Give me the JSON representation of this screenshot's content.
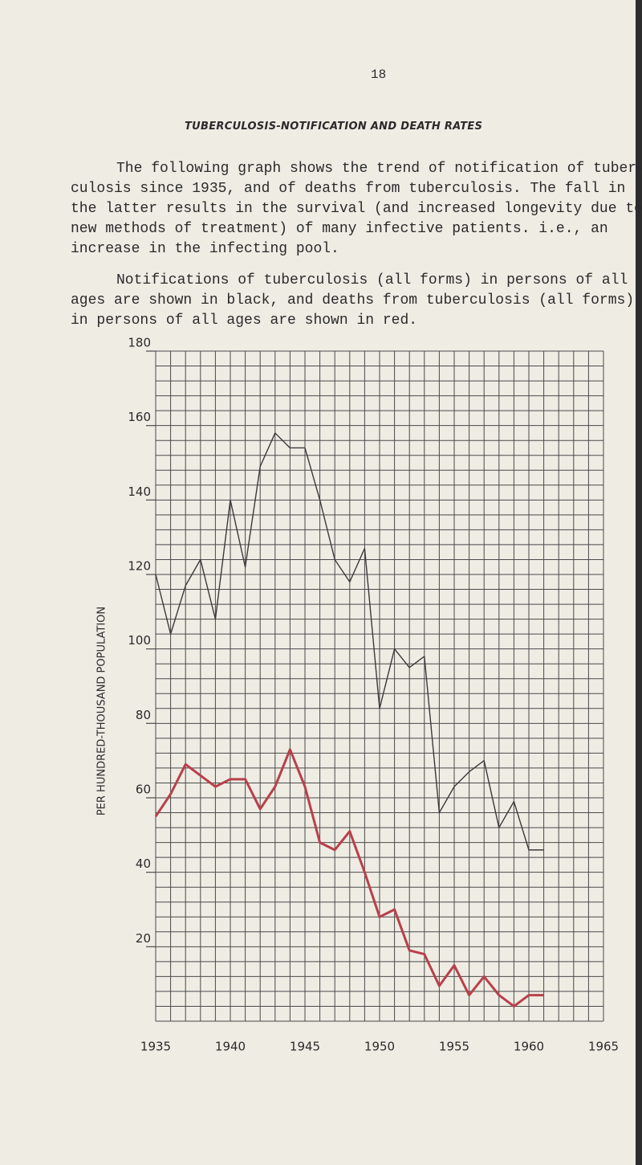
{
  "page_number": "18",
  "heading": "TUBERCULOSIS-NOTIFICATION AND DEATH RATES",
  "paragraphs": [
    [
      "The following graph shows the trend of notification of tuber-",
      "culosis since 1935, and of deaths from tuberculosis. The fall in",
      "the latter results in the survival (and increased longevity due to",
      "new methods of treatment) of many infective patients. i.e., an",
      "increase in the infecting pool."
    ],
    [
      "Notifications of tuberculosis (all forms) in persons of all",
      "ages are shown in black, and deaths from tuberculosis (all forms)",
      "in persons of all ages are shown in red."
    ]
  ],
  "chart_data": {
    "type": "line",
    "y_label": "PER HUNDRED-THOUSAND POPULATION",
    "x": [
      1935,
      1936,
      1937,
      1938,
      1939,
      1940,
      1941,
      1942,
      1943,
      1944,
      1945,
      1946,
      1947,
      1948,
      1949,
      1950,
      1951,
      1952,
      1953,
      1954,
      1955,
      1956,
      1957,
      1958,
      1959,
      1960,
      1961
    ],
    "series": [
      {
        "color": "#3a3a3a",
        "values": [
          120,
          104,
          117,
          124,
          108,
          140,
          122,
          149,
          158,
          154,
          154,
          140,
          124,
          118,
          127,
          84,
          100,
          95,
          98,
          56,
          63,
          67,
          70,
          52,
          59,
          46,
          46
        ]
      },
      {
        "color": "#b8404a",
        "values": [
          55,
          61,
          69,
          66,
          63,
          65,
          65,
          57,
          63,
          73,
          63,
          48,
          46,
          51,
          40,
          28,
          30,
          19,
          18,
          9.5,
          15,
          7,
          12,
          7,
          4,
          7,
          7
        ]
      }
    ],
    "xlim": [
      1935,
      1965
    ],
    "xticks": [
      1935,
      1940,
      1945,
      1950,
      1955,
      1960,
      1965
    ],
    "ylim": [
      0,
      180
    ],
    "yticks": [
      20,
      40,
      60,
      80,
      100,
      120,
      140,
      160,
      180
    ],
    "grid": true
  }
}
